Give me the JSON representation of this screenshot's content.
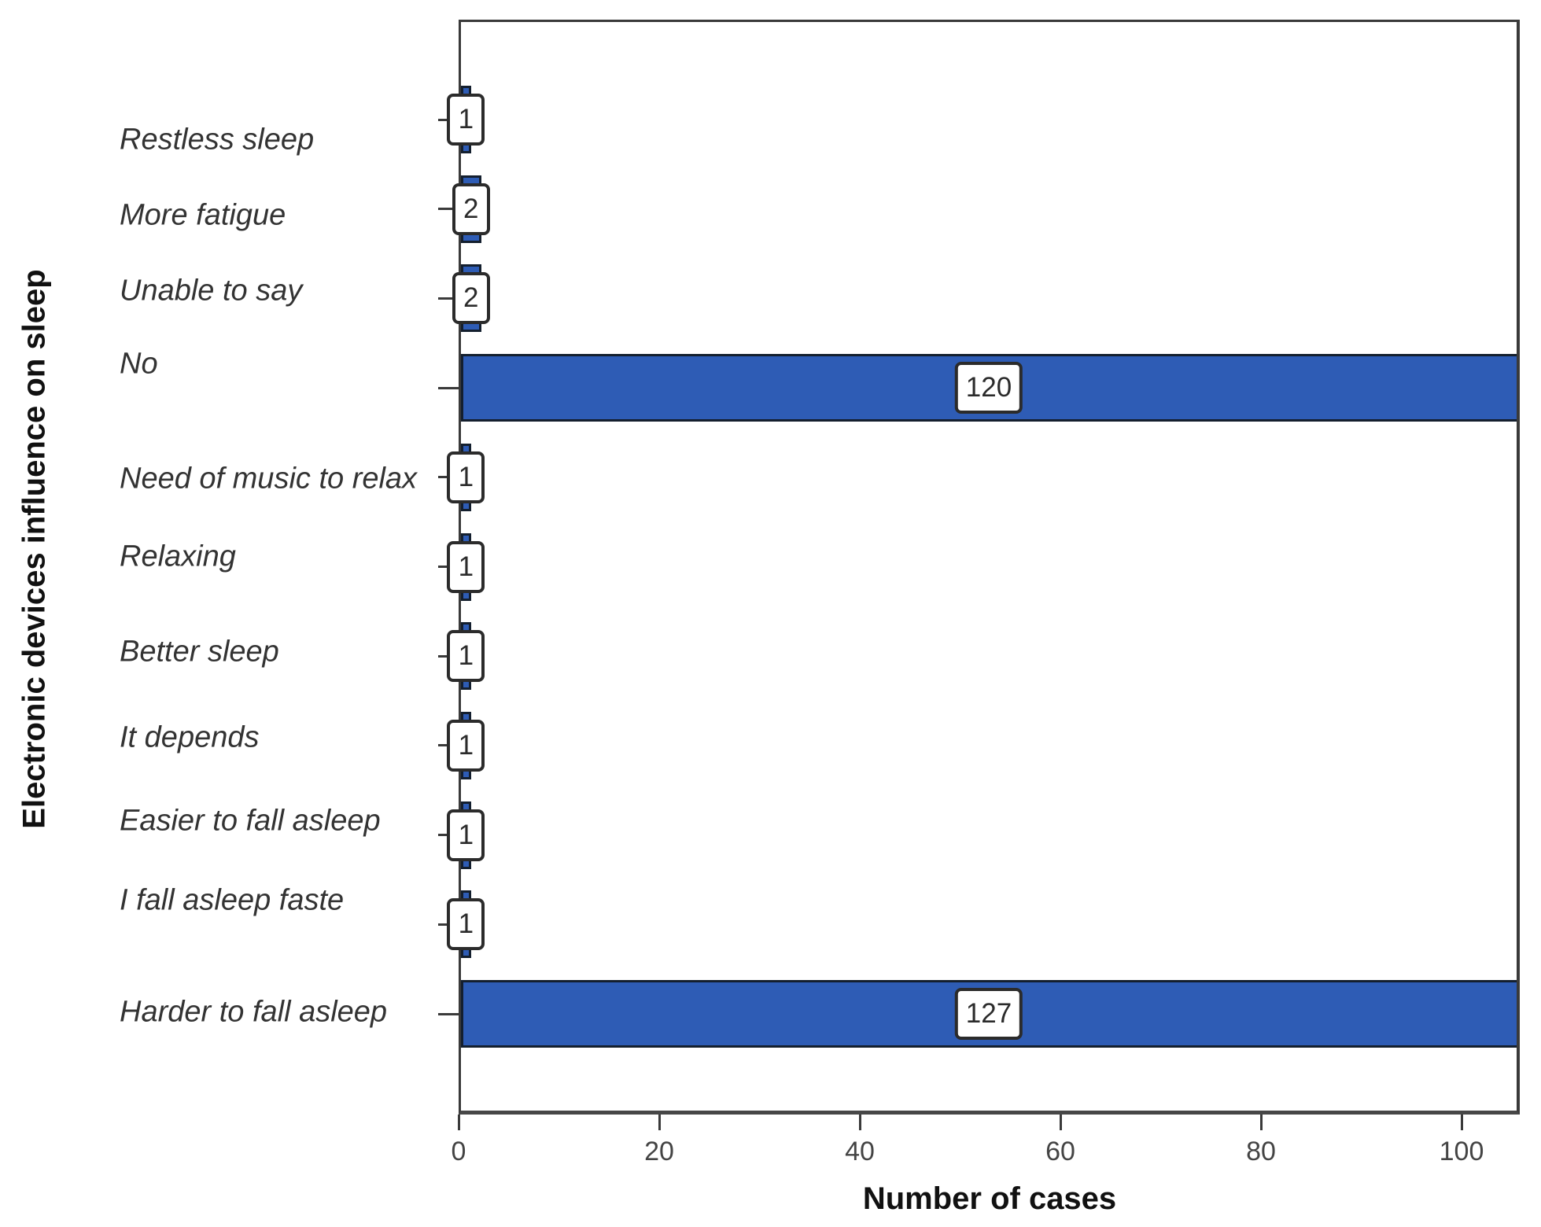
{
  "chart_data": {
    "type": "bar",
    "orientation": "horizontal",
    "title": "",
    "xlabel": "Number of cases",
    "ylabel": "Electronic devices influence on sleep",
    "categories": [
      "Restless sleep",
      "More fatigue",
      "Unable to say",
      "No",
      "Need of music to relax",
      "Relaxing",
      "Better sleep",
      "It depends",
      "Easier to fall asleep",
      "I fall asleep faste",
      "Harder to fall asleep"
    ],
    "values": [
      1,
      2,
      2,
      120,
      1,
      1,
      1,
      1,
      1,
      1,
      127
    ],
    "value_labels": [
      "1",
      "2",
      "2",
      "120",
      "1",
      "1",
      "1",
      "1",
      "1",
      "1",
      "127"
    ],
    "x_ticks": [
      "0",
      "20",
      "40",
      "60",
      "80",
      "100"
    ],
    "x_tick_values": [
      0,
      20,
      40,
      60,
      80,
      100
    ],
    "xlim": [
      0,
      105.8
    ],
    "grid": false,
    "legend": null,
    "bar_color": "#2e5cb5",
    "bar_border_color": "#141f2e",
    "value_box_bg": "#ffffff",
    "value_box_border": "#2b2b2b",
    "axis_color": "#3a3a3a"
  }
}
